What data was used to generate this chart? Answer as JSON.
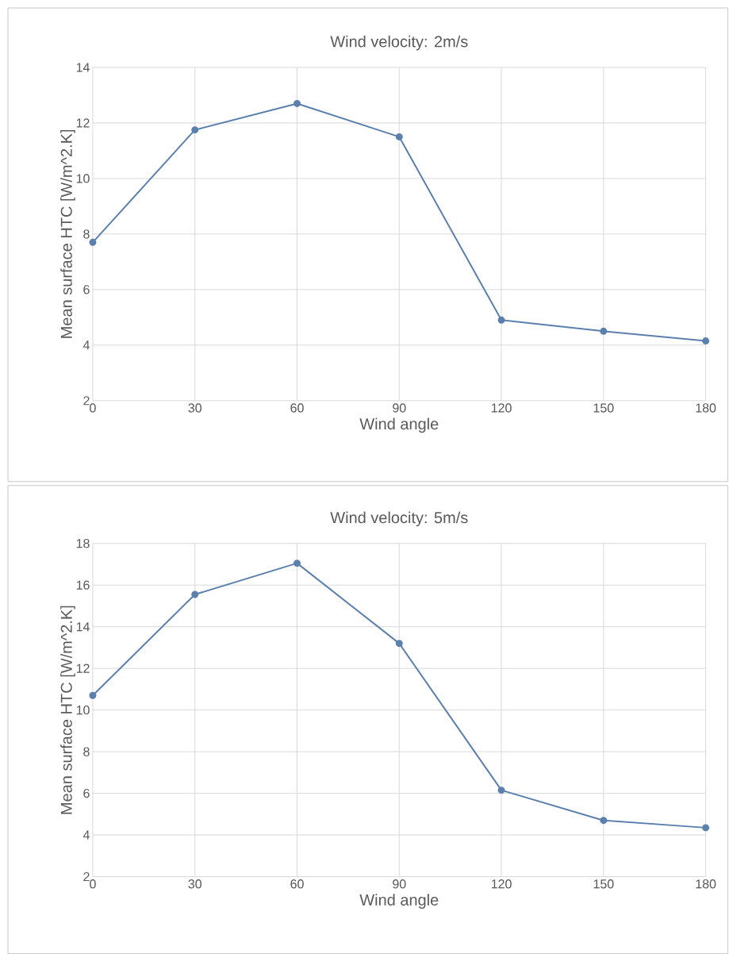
{
  "chart_data": [
    {
      "type": "line",
      "title": "Wind velocity: 2m/s",
      "xlabel": "Wind angle",
      "ylabel": "Mean surface HTC [W/m^2.K]",
      "x": [
        0,
        30,
        60,
        90,
        120,
        150,
        180
      ],
      "values": [
        7.7,
        11.75,
        12.7,
        11.5,
        4.9,
        4.5,
        4.15
      ],
      "color": "#5b80ad",
      "xlim": [
        0,
        180
      ],
      "ylim": [
        2,
        14
      ],
      "xticks": [
        0,
        30,
        60,
        90,
        120,
        150,
        180
      ],
      "yticks": [
        2,
        4,
        6,
        8,
        10,
        12,
        14
      ],
      "grid": true,
      "marker": "circle"
    },
    {
      "type": "line",
      "title": "Wind velocity: 5m/s",
      "xlabel": "Wind angle",
      "ylabel": "Mean surface HTC [W/m^2.K]",
      "x": [
        0,
        30,
        60,
        90,
        120,
        150,
        180
      ],
      "values": [
        10.7,
        15.55,
        17.05,
        13.2,
        6.15,
        4.7,
        4.35
      ],
      "color": "#5b80ad",
      "xlim": [
        0,
        180
      ],
      "ylim": [
        2,
        18
      ],
      "xticks": [
        0,
        30,
        60,
        90,
        120,
        150,
        180
      ],
      "yticks": [
        2,
        4,
        6,
        8,
        10,
        12,
        14,
        16,
        18
      ],
      "grid": true,
      "marker": "circle"
    }
  ]
}
